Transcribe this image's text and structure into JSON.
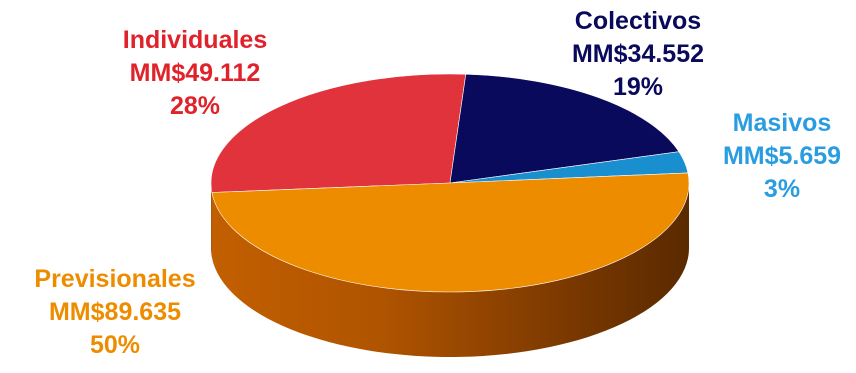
{
  "chart_data": {
    "type": "pie",
    "style": "3d",
    "slices": [
      {
        "label": "Individuales",
        "amount": "MM$49.112",
        "value": 49112,
        "percent": "28%",
        "color": "#e0333c"
      },
      {
        "label": "Colectivos",
        "amount": "MM$34.552",
        "value": 34552,
        "percent": "19%",
        "color": "#0a0a5c"
      },
      {
        "label": "Masivos",
        "amount": "MM$5.659",
        "value": 5659,
        "percent": "3%",
        "color": "#1a8fd0"
      },
      {
        "label": "Previsionales",
        "amount": "MM$89.635",
        "value": 89635,
        "percent": "50%",
        "color": "#ee8c00"
      }
    ],
    "label_colors": [
      "#e0222b",
      "#0a0a5c",
      "#2a9de0",
      "#ee8c00"
    ],
    "legend": "none"
  }
}
